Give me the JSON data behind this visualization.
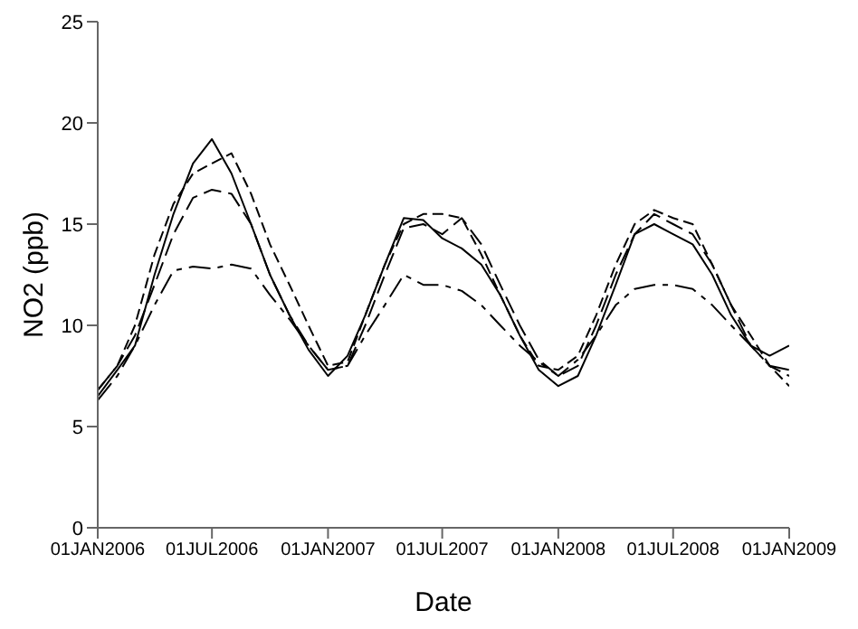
{
  "chart_data": {
    "type": "line",
    "xlabel": "Date",
    "ylabel": "NO2 (ppb)",
    "x": [
      "2006-01",
      "2006-02",
      "2006-03",
      "2006-04",
      "2006-05",
      "2006-06",
      "2006-07",
      "2006-08",
      "2006-09",
      "2006-10",
      "2006-11",
      "2006-12",
      "2007-01",
      "2007-02",
      "2007-03",
      "2007-04",
      "2007-05",
      "2007-06",
      "2007-07",
      "2007-08",
      "2007-09",
      "2007-10",
      "2007-11",
      "2007-12",
      "2008-01",
      "2008-02",
      "2008-03",
      "2008-04",
      "2008-05",
      "2008-06",
      "2008-07",
      "2008-08",
      "2008-09",
      "2008-10",
      "2008-11",
      "2008-12",
      "2009-01"
    ],
    "series": [
      {
        "color": "#000000",
        "line_style": "solid",
        "values": [
          6.5,
          7.8,
          9.0,
          12.5,
          15.5,
          18.0,
          19.2,
          17.5,
          15.0,
          12.5,
          10.5,
          8.8,
          7.5,
          8.5,
          10.5,
          13.0,
          15.3,
          15.2,
          14.3,
          13.8,
          13.0,
          11.5,
          9.5,
          7.8,
          7.0,
          7.5,
          9.5,
          12.0,
          14.5,
          15.0,
          14.5,
          14.0,
          12.5,
          10.5,
          9.0,
          8.5,
          9.0
        ]
      },
      {
        "color": "#000000",
        "line_style": "dashed",
        "values": [
          6.8,
          8.0,
          10.0,
          13.5,
          16.0,
          17.5,
          18.0,
          18.5,
          16.5,
          14.0,
          12.0,
          10.0,
          8.0,
          8.2,
          10.5,
          13.0,
          15.0,
          15.5,
          15.5,
          15.3,
          13.5,
          11.5,
          9.5,
          8.0,
          7.8,
          8.5,
          10.5,
          13.0,
          15.0,
          15.7,
          15.3,
          15.0,
          13.0,
          11.0,
          9.5,
          8.0,
          7.0
        ]
      },
      {
        "color": "#000000",
        "line_style": "dashed",
        "values": [
          6.8,
          8.0,
          9.5,
          12.0,
          14.5,
          16.3,
          16.7,
          16.5,
          15.0,
          12.5,
          10.5,
          9.0,
          7.8,
          8.0,
          10.0,
          12.5,
          14.8,
          15.0,
          14.5,
          15.3,
          14.0,
          12.0,
          10.0,
          8.3,
          7.5,
          8.0,
          10.0,
          12.5,
          14.5,
          15.5,
          15.0,
          14.5,
          13.0,
          11.0,
          9.0,
          8.0,
          7.5
        ]
      },
      {
        "color": "#000000",
        "line_style": "dashed",
        "values": [
          6.3,
          7.5,
          9.0,
          11.0,
          12.7,
          12.9,
          12.8,
          13.0,
          12.8,
          11.5,
          10.3,
          9.0,
          7.8,
          8.0,
          9.5,
          11.0,
          12.5,
          12.0,
          12.0,
          11.7,
          11.0,
          10.0,
          9.0,
          8.2,
          7.5,
          8.3,
          9.5,
          11.0,
          11.8,
          12.0,
          12.0,
          11.8,
          11.0,
          10.0,
          9.0,
          8.0,
          7.8
        ]
      }
    ],
    "xlim": [
      "2006-01-01",
      "2009-01-01"
    ],
    "xticks": [
      {
        "value": "2006-01-01",
        "label": "01JAN2006"
      },
      {
        "value": "2006-07-01",
        "label": "01JUL2006"
      },
      {
        "value": "2007-01-01",
        "label": "01JAN2007"
      },
      {
        "value": "2007-07-01",
        "label": "01JUL2007"
      },
      {
        "value": "2008-01-01",
        "label": "01JAN2008"
      },
      {
        "value": "2008-07-01",
        "label": "01JUL2008"
      },
      {
        "value": "2009-01-01",
        "label": "01JAN2009"
      }
    ],
    "ylim": [
      0,
      25
    ],
    "yticks": [
      0,
      5,
      10,
      15,
      20,
      25
    ],
    "grid": false,
    "legend": false,
    "marker": "none"
  }
}
